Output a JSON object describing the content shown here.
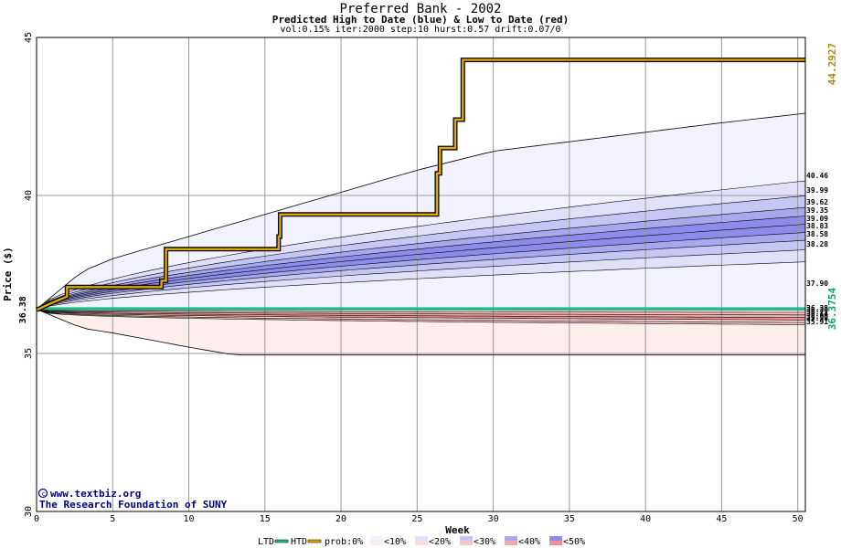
{
  "header": {
    "title": "Preferred Bank - 2002",
    "subtitle": "Predicted High to Date (blue) &  Low to Date (red)",
    "params": "vol:0.15% iter:2000 step:10 hurst:0.57 drift:0.07/0"
  },
  "watermark": {
    "line1": "www.textbiz.org",
    "line2": "The Research Foundation of SUNY"
  },
  "chart_data": {
    "type": "area",
    "xlabel": "Week",
    "ylabel": "Price ($)",
    "xlim": [
      0,
      50.5
    ],
    "ylim": [
      30,
      45
    ],
    "x_ticks": [
      0,
      5,
      10,
      15,
      20,
      25,
      30,
      35,
      40,
      45,
      50
    ],
    "y_ticks": [
      30,
      35,
      40,
      45
    ],
    "start_price": 36.38,
    "start_label": "36.38",
    "high_end_label": "44.2927",
    "low_end_label": "36.3754",
    "high_percentile_end_values": [
      "40.46",
      "39.99",
      "39.62",
      "39.35",
      "39.09",
      "38.83",
      "38.58",
      "38.28",
      "37.90"
    ],
    "low_percentile_end_values": [
      "36.38",
      "36.30",
      "36.22",
      "36.14",
      "36.06",
      "35.98",
      "35.91"
    ],
    "envelope_high": {
      "x": [
        0,
        3,
        5,
        10,
        15,
        20,
        25,
        30,
        35,
        40,
        45,
        50.5
      ],
      "y": [
        36.4,
        37.6,
        38.0,
        38.7,
        39.4,
        40.1,
        40.8,
        41.4,
        41.7,
        42.0,
        42.3,
        42.6
      ]
    },
    "envelope_low": {
      "x": [
        0,
        3,
        5,
        10,
        13,
        20,
        30,
        40,
        50.5
      ],
      "y": [
        36.4,
        35.8,
        35.65,
        35.2,
        34.95,
        34.95,
        34.95,
        34.95,
        34.95
      ]
    },
    "htd_path": {
      "x": [
        0,
        1,
        2,
        2,
        8.2,
        8.2,
        8.5,
        8.5,
        15.9,
        15.9,
        16,
        16,
        26.3,
        26.3,
        26.5,
        26.5,
        27.5,
        27.5,
        28,
        28,
        50.5
      ],
      "y": [
        36.38,
        36.6,
        36.8,
        37.1,
        37.1,
        37.3,
        37.3,
        38.3,
        38.3,
        38.7,
        38.7,
        39.4,
        39.4,
        40.7,
        40.7,
        41.5,
        41.5,
        42.4,
        42.4,
        44.29,
        44.29
      ]
    },
    "ltd_value": 36.3754,
    "legend": {
      "ltd": "LTD",
      "htd": "HTD",
      "prob": "prob:0%",
      "items": [
        "<10%",
        "<20%",
        "<30%",
        "<40%",
        "<50%"
      ]
    },
    "colors": {
      "htd": "#e0a800",
      "ltd": "#19c08a",
      "blue_bands": [
        "#f2f2ff",
        "#e0e0fa",
        "#c6c6f4",
        "#a8a8ee",
        "#8c8cea"
      ],
      "red_bands": [
        "#fdeded",
        "#fbdcdc",
        "#f8c6c6",
        "#f4a8a8",
        "#f08f8f"
      ]
    }
  }
}
